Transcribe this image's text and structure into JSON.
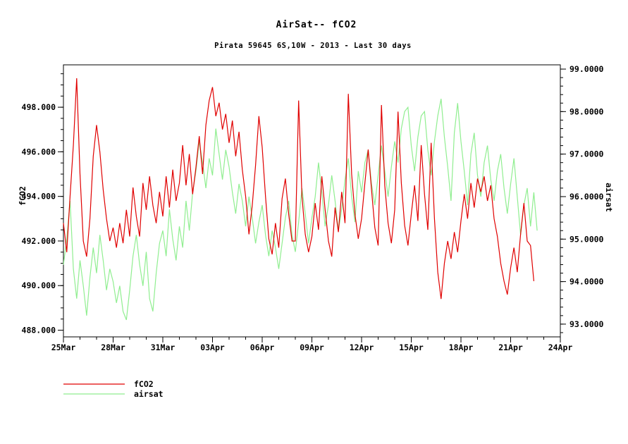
{
  "chart_data": {
    "type": "line",
    "title": "AirSat-- fCO2",
    "subtitle": "Pirata 59645 6S,10W - 2013 - Last 30 days",
    "grid": false,
    "legend_position": "bottom-left",
    "x_axis": {
      "unit": "date",
      "range_days": [
        0,
        30
      ],
      "minor_step_days": 1,
      "ticks": [
        {
          "d": 0,
          "label": "25Mar"
        },
        {
          "d": 3,
          "label": "28Mar"
        },
        {
          "d": 6,
          "label": "31Mar"
        },
        {
          "d": 9,
          "label": "03Apr"
        },
        {
          "d": 12,
          "label": "06Apr"
        },
        {
          "d": 15,
          "label": "09Apr"
        },
        {
          "d": 18,
          "label": "12Apr"
        },
        {
          "d": 21,
          "label": "15Apr"
        },
        {
          "d": 24,
          "label": "18Apr"
        },
        {
          "d": 27,
          "label": "21Apr"
        },
        {
          "d": 30,
          "label": "24Apr"
        }
      ]
    },
    "left_axis": {
      "label": "fCO2",
      "range": [
        487.7,
        499.9
      ],
      "minor_step": 0.5,
      "ticks": [
        {
          "v": 488,
          "label": "488.000"
        },
        {
          "v": 490,
          "label": "490.000"
        },
        {
          "v": 492,
          "label": "492.000"
        },
        {
          "v": 494,
          "label": "494.000"
        },
        {
          "v": 496,
          "label": "496.000"
        },
        {
          "v": 498,
          "label": "498.000"
        }
      ]
    },
    "right_axis": {
      "label": "airsat",
      "range": [
        92.7,
        99.1
      ],
      "minor_step": 0.2,
      "ticks": [
        {
          "v": 93,
          "label": "93.0000"
        },
        {
          "v": 94,
          "label": "94.0000"
        },
        {
          "v": 95,
          "label": "95.0000"
        },
        {
          "v": 96,
          "label": "96.0000"
        },
        {
          "v": 97,
          "label": "97.0000"
        },
        {
          "v": 98,
          "label": "98.0000"
        },
        {
          "v": 99,
          "label": "99.0000"
        }
      ]
    },
    "series": [
      {
        "name": "fCO2",
        "color": "#e00000",
        "axis": "left",
        "t0_days": 0,
        "dt_days": 0.2,
        "values": [
          492.8,
          491.5,
          494.0,
          496.3,
          499.3,
          495.0,
          492.0,
          491.3,
          493.0,
          495.8,
          497.2,
          496.0,
          494.3,
          493.0,
          492.0,
          492.6,
          491.7,
          492.8,
          491.9,
          493.4,
          492.2,
          494.4,
          493.1,
          492.2,
          494.6,
          493.4,
          494.9,
          493.6,
          492.8,
          494.2,
          493.1,
          494.9,
          493.5,
          495.2,
          493.8,
          494.6,
          496.3,
          494.5,
          495.9,
          494.1,
          495.3,
          496.7,
          495.0,
          497.2,
          498.3,
          498.9,
          497.6,
          498.2,
          497.0,
          497.7,
          496.4,
          497.4,
          495.8,
          496.9,
          495.2,
          494.0,
          492.3,
          493.6,
          495.4,
          497.6,
          496.2,
          494.0,
          492.1,
          491.4,
          492.8,
          491.7,
          493.9,
          494.8,
          493.2,
          492.0,
          492.0,
          498.3,
          494.0,
          492.3,
          491.5,
          492.2,
          493.7,
          492.5,
          494.9,
          493.4,
          492.0,
          491.3,
          493.5,
          492.4,
          494.2,
          492.8,
          498.6,
          495.0,
          493.2,
          492.1,
          493.0,
          494.6,
          496.1,
          494.3,
          492.6,
          491.8,
          498.1,
          494.5,
          492.8,
          491.9,
          493.4,
          497.8,
          494.6,
          492.7,
          491.8,
          493.2,
          494.5,
          492.9,
          496.3,
          494.1,
          492.5,
          496.4,
          493.0,
          490.6,
          489.4,
          491.0,
          492.0,
          491.2,
          492.4,
          491.5,
          492.9,
          494.1,
          493.0,
          494.6,
          493.5,
          494.8,
          494.2,
          494.9,
          493.8,
          494.5,
          493.0,
          492.2,
          491.0,
          490.2,
          489.6,
          490.8,
          491.7,
          490.6,
          492.3,
          493.7,
          492.0,
          491.8,
          490.2
        ]
      },
      {
        "name": "airsat",
        "color": "#90ee90",
        "axis": "right",
        "t0_days": 0,
        "dt_days": 0.2,
        "values": [
          94.4,
          95.0,
          95.9,
          94.3,
          93.6,
          94.5,
          93.9,
          93.2,
          94.1,
          94.8,
          94.2,
          95.1,
          94.5,
          93.8,
          94.3,
          94.0,
          93.5,
          93.9,
          93.3,
          93.1,
          93.8,
          94.6,
          95.1,
          94.4,
          93.9,
          94.7,
          93.6,
          93.3,
          94.2,
          94.9,
          95.2,
          94.6,
          95.7,
          95.0,
          94.5,
          95.3,
          94.8,
          95.9,
          95.2,
          96.1,
          96.6,
          97.3,
          96.8,
          96.2,
          96.9,
          96.5,
          97.6,
          97.0,
          96.4,
          97.1,
          96.7,
          96.1,
          95.6,
          96.3,
          95.9,
          95.3,
          96.0,
          95.5,
          94.9,
          95.4,
          95.8,
          95.1,
          94.6,
          95.2,
          94.8,
          94.3,
          94.9,
          95.5,
          95.9,
          95.1,
          94.7,
          95.4,
          96.2,
          95.6,
          94.9,
          95.5,
          96.0,
          96.8,
          96.1,
          95.3,
          95.8,
          96.5,
          95.9,
          95.2,
          95.7,
          96.4,
          96.9,
          96.0,
          95.4,
          96.6,
          96.1,
          96.8,
          97.1,
          96.3,
          95.8,
          96.5,
          97.2,
          96.6,
          96.0,
          96.7,
          97.3,
          96.8,
          97.6,
          98.0,
          98.1,
          97.2,
          96.6,
          97.4,
          97.9,
          98.0,
          97.1,
          96.5,
          97.3,
          97.9,
          98.3,
          97.4,
          96.7,
          95.9,
          97.5,
          98.2,
          97.3,
          96.6,
          95.8,
          97.0,
          97.5,
          96.5,
          96.0,
          96.8,
          97.2,
          96.4,
          95.9,
          96.6,
          97.0,
          96.2,
          95.6,
          96.3,
          96.9,
          96.0,
          95.1,
          95.8,
          96.2,
          95.3,
          96.1,
          95.2
        ]
      }
    ]
  }
}
